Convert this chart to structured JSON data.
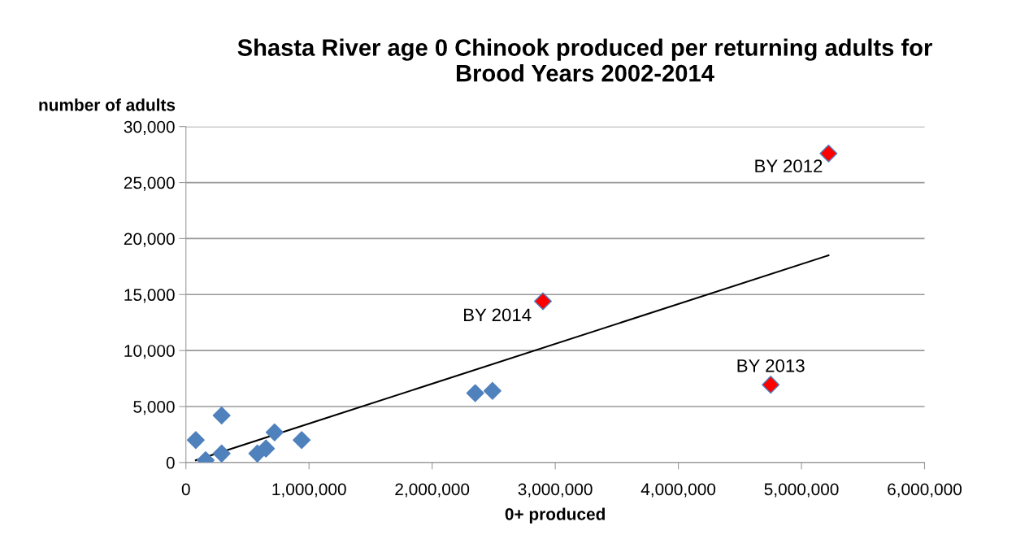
{
  "chart_data": {
    "type": "scatter",
    "title": "Shasta River age 0 Chinook produced per returning adults for\nBrood Years 2002-2014",
    "xlabel": "0+ produced",
    "ylabel": "number of adults",
    "series": [
      {
        "color": "#4f81bd",
        "x": [
          80000,
          160000,
          290000,
          290000,
          580000,
          650000,
          720000,
          940000,
          2350000,
          2490000
        ],
        "values": [
          2000,
          200,
          4200,
          800,
          800,
          1250,
          2700,
          2000,
          6200,
          6400
        ]
      },
      {
        "color": "#ff0000",
        "x": [
          2900000,
          4750000,
          5220000
        ],
        "values": [
          14400,
          6950,
          27600
        ]
      },
      {
        "type": "line",
        "color": "#000000",
        "marker": "none",
        "x": [
          80000,
          5220000
        ],
        "values": [
          200,
          18500
        ]
      }
    ],
    "annotations": [
      {
        "text": "BY 2012",
        "x": 5220000,
        "y": 27600
      },
      {
        "text": "BY 2014",
        "x": 2900000,
        "y": 14400
      },
      {
        "text": "BY 2013",
        "x": 4750000,
        "y": 6950
      }
    ],
    "xlim": [
      0,
      6000000
    ],
    "xticks": [
      {
        "value": 0,
        "label": "0"
      },
      {
        "value": 1000000,
        "label": "1,000,000"
      },
      {
        "value": 2000000,
        "label": "2,000,000"
      },
      {
        "value": 3000000,
        "label": "3,000,000"
      },
      {
        "value": 4000000,
        "label": "4,000,000"
      },
      {
        "value": 5000000,
        "label": "5,000,000"
      },
      {
        "value": 6000000,
        "label": "6,000,000"
      }
    ],
    "ylim": [
      0,
      30000
    ],
    "yticks": [
      {
        "value": 0,
        "label": "0"
      },
      {
        "value": 5000,
        "label": "5,000"
      },
      {
        "value": 10000,
        "label": "10,000"
      },
      {
        "value": 15000,
        "label": "15,000"
      },
      {
        "value": 20000,
        "label": "20,000"
      },
      {
        "value": 25000,
        "label": "25,000"
      },
      {
        "value": 30000,
        "label": "30,000"
      }
    ],
    "grid": "y",
    "marker": "diamond",
    "legend": false
  }
}
